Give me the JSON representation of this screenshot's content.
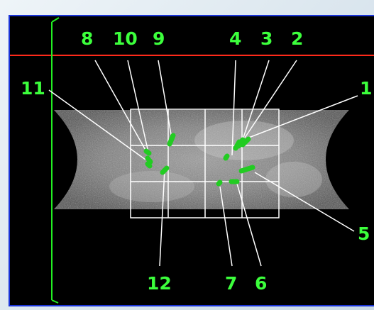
{
  "colors": {
    "frame_border": "#1a34d8",
    "horizon_line": "#ff2a1a",
    "axis_line": "#22ee22",
    "label_text": "#3cff3c",
    "grid_lines": "#ffffff",
    "leader_lines": "#ffffff",
    "markers": "#22cc22",
    "background": "#000000"
  },
  "labels": {
    "l1": "1",
    "l2": "2",
    "l3": "3",
    "l4": "4",
    "l5": "5",
    "l6": "6",
    "l7": "7",
    "l8": "8",
    "l9": "9",
    "l10": "10",
    "l11": "11",
    "l12": "12"
  }
}
